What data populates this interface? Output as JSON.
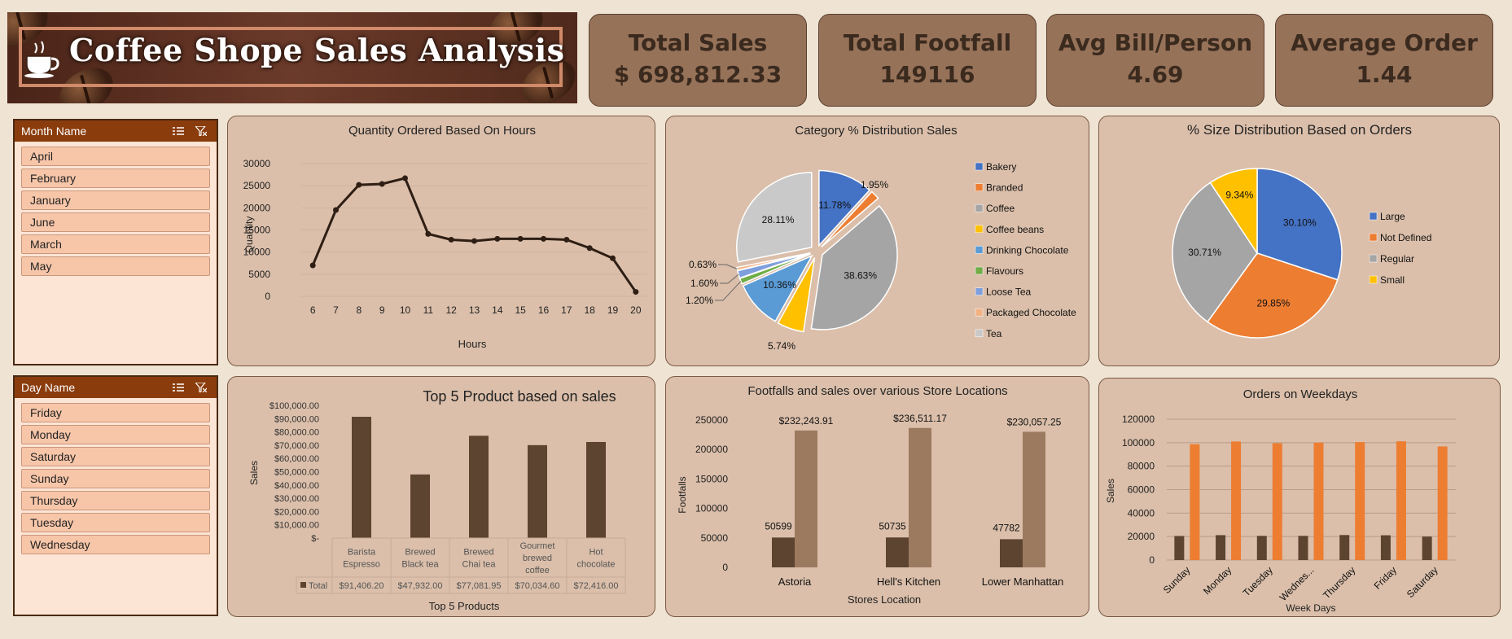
{
  "banner": {
    "title": "Coffee Shope Sales Analysis"
  },
  "kpis": [
    {
      "title": "Total Sales",
      "value": "$ 698,812.33"
    },
    {
      "title": "Total Footfall",
      "value": "149116"
    },
    {
      "title": "Avg Bill/Person",
      "value": "4.69"
    },
    {
      "title": "Average Order",
      "value": "1.44"
    }
  ],
  "slicers": {
    "month": {
      "title": "Month Name",
      "items": [
        "April",
        "February",
        "January",
        "June",
        "March",
        "May"
      ]
    },
    "day": {
      "title": "Day Name",
      "items": [
        "Friday",
        "Monday",
        "Saturday",
        "Sunday",
        "Thursday",
        "Tuesday",
        "Wednesday"
      ]
    }
  },
  "colors": {
    "dark_brown": "#5c4430",
    "light_brown": "#9b7a60",
    "orange": "#ed7d31",
    "line": "#2e1e14"
  },
  "chart_data": [
    {
      "id": "hours",
      "type": "line",
      "title": "Quantity Ordered Based On Hours",
      "xlabel": "Hours",
      "ylabel": "Quantity",
      "x": [
        6,
        7,
        8,
        9,
        10,
        11,
        12,
        13,
        14,
        15,
        16,
        17,
        18,
        19,
        20
      ],
      "values": [
        7000,
        19500,
        25200,
        25400,
        26700,
        14100,
        12800,
        12500,
        13000,
        13000,
        13000,
        12800,
        10900,
        8600,
        1000
      ],
      "ylim": [
        0,
        30000
      ],
      "yticks": [
        "0",
        "5000",
        "10000",
        "15000",
        "20000",
        "25000",
        "30000"
      ],
      "grid": true
    },
    {
      "id": "category",
      "type": "pie",
      "title": "Category % Distribution Sales",
      "labels": [
        "Bakery",
        "Branded",
        "Coffee",
        "Coffee beans",
        "Drinking Chocolate",
        "Flavours",
        "Loose Tea",
        "Packaged Chocolate",
        "Tea"
      ],
      "values": [
        11.78,
        1.95,
        38.63,
        5.74,
        10.36,
        1.2,
        1.6,
        0.63,
        28.11
      ],
      "data_labels": [
        "11.78%",
        "1.95%",
        "38.63%",
        "5.74%",
        "10.36%",
        "1.20%",
        "1.60%",
        "0.63%",
        "28.11%"
      ],
      "colors": [
        "#4472c4",
        "#ed7d31",
        "#a5a5a5",
        "#ffc000",
        "#5b9bd5",
        "#70ad47",
        "#7f9fdc",
        "#f4b183",
        "#c9c9c9"
      ],
      "legend": "right"
    },
    {
      "id": "size",
      "type": "pie",
      "title": "% Size Distribution Based on Orders",
      "labels": [
        "Large",
        "Not Defined",
        "Regular",
        "Small"
      ],
      "values": [
        30.1,
        29.85,
        30.71,
        9.34
      ],
      "data_labels": [
        "30.10%",
        "29.85%",
        "30.71%",
        "9.34%"
      ],
      "colors": [
        "#4472c4",
        "#ed7d31",
        "#a5a5a5",
        "#ffc000"
      ],
      "legend": "right"
    },
    {
      "id": "top5",
      "type": "bar",
      "title": "Top 5 Product based on sales",
      "xlabel": "Top 5 Products",
      "ylabel": "Sales",
      "categories": [
        "Barista Espresso",
        "Brewed Black tea",
        "Brewed Chai tea",
        "Gourmet brewed coffee",
        "Hot chocolate"
      ],
      "category_lines": [
        [
          "Barista",
          "Espresso"
        ],
        [
          "Brewed",
          "Black tea"
        ],
        [
          "Brewed",
          "Chai tea"
        ],
        [
          "Gourmet",
          "brewed",
          "coffee"
        ],
        [
          "Hot",
          "chocolate"
        ]
      ],
      "series": [
        {
          "name": "Total",
          "values": [
            91406.2,
            47932.0,
            77081.95,
            70034.6,
            72416.0
          ]
        }
      ],
      "table_values": [
        "$91,406.20",
        "$47,932.00",
        "$77,081.95",
        "$70,034.60",
        "$72,416.00"
      ],
      "ylim": [
        0,
        100000
      ],
      "yticks": [
        "$-",
        "$10,000.00",
        "$20,000.00",
        "$30,000.00",
        "$40,000.00",
        "$50,000.00",
        "$60,000.00",
        "$70,000.00",
        "$80,000.00",
        "$90,000.00",
        "$100,000.00"
      ]
    },
    {
      "id": "stores",
      "type": "bar",
      "title": "Footfalls and sales over various Store Locations",
      "xlabel": "Stores Location",
      "ylabel": "Footfalls",
      "categories": [
        "Astoria",
        "Hell's Kitchen",
        "Lower Manhattan"
      ],
      "series": [
        {
          "values": [
            50599,
            50735,
            47782
          ],
          "labels": [
            "50599",
            "50735",
            "47782"
          ]
        },
        {
          "values": [
            232243.91,
            236511.17,
            230057.25
          ],
          "labels": [
            "$232,243.91",
            "$236,511.17",
            "$230,057.25"
          ]
        }
      ],
      "ylim": [
        0,
        250000
      ],
      "yticks": [
        "0",
        "50000",
        "100000",
        "150000",
        "200000",
        "250000"
      ]
    },
    {
      "id": "weekdays",
      "type": "bar",
      "title": "Orders on Weekdays",
      "xlabel": "Week Days",
      "ylabel": "Sales",
      "categories": [
        "Sunday",
        "Monday",
        "Tuesday",
        "Wednes...",
        "Thursday",
        "Friday",
        "Saturday"
      ],
      "series": [
        {
          "values": [
            20500,
            21200,
            20600,
            20600,
            21300,
            21100,
            20000
          ]
        },
        {
          "values": [
            98700,
            101000,
            99500,
            100000,
            100500,
            101200,
            96800
          ]
        }
      ],
      "ylim": [
        0,
        120000
      ],
      "yticks": [
        "0",
        "20000",
        "40000",
        "60000",
        "80000",
        "100000",
        "120000"
      ],
      "grid": true
    }
  ]
}
